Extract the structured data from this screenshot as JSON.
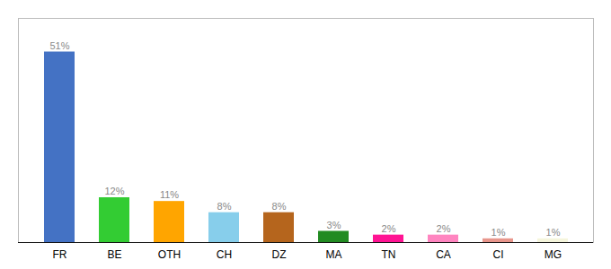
{
  "chart_data": {
    "type": "bar",
    "categories": [
      "FR",
      "BE",
      "OTH",
      "CH",
      "DZ",
      "MA",
      "TN",
      "CA",
      "CI",
      "MG"
    ],
    "values": [
      51,
      12,
      11,
      8,
      8,
      3,
      2,
      2,
      1,
      1
    ],
    "value_labels": [
      "51%",
      "12%",
      "11%",
      "8%",
      "8%",
      "3%",
      "2%",
      "2%",
      "1%",
      "1%"
    ],
    "colors": [
      "#4472C4",
      "#33CC33",
      "#FFA500",
      "#87CEEB",
      "#B5651D",
      "#228B22",
      "#FF1493",
      "#FF85C0",
      "#E8968C",
      "#F5F5DC"
    ],
    "ylim": [
      0,
      60
    ],
    "data_labels": true,
    "tick_labels": "x",
    "grid": false
  }
}
